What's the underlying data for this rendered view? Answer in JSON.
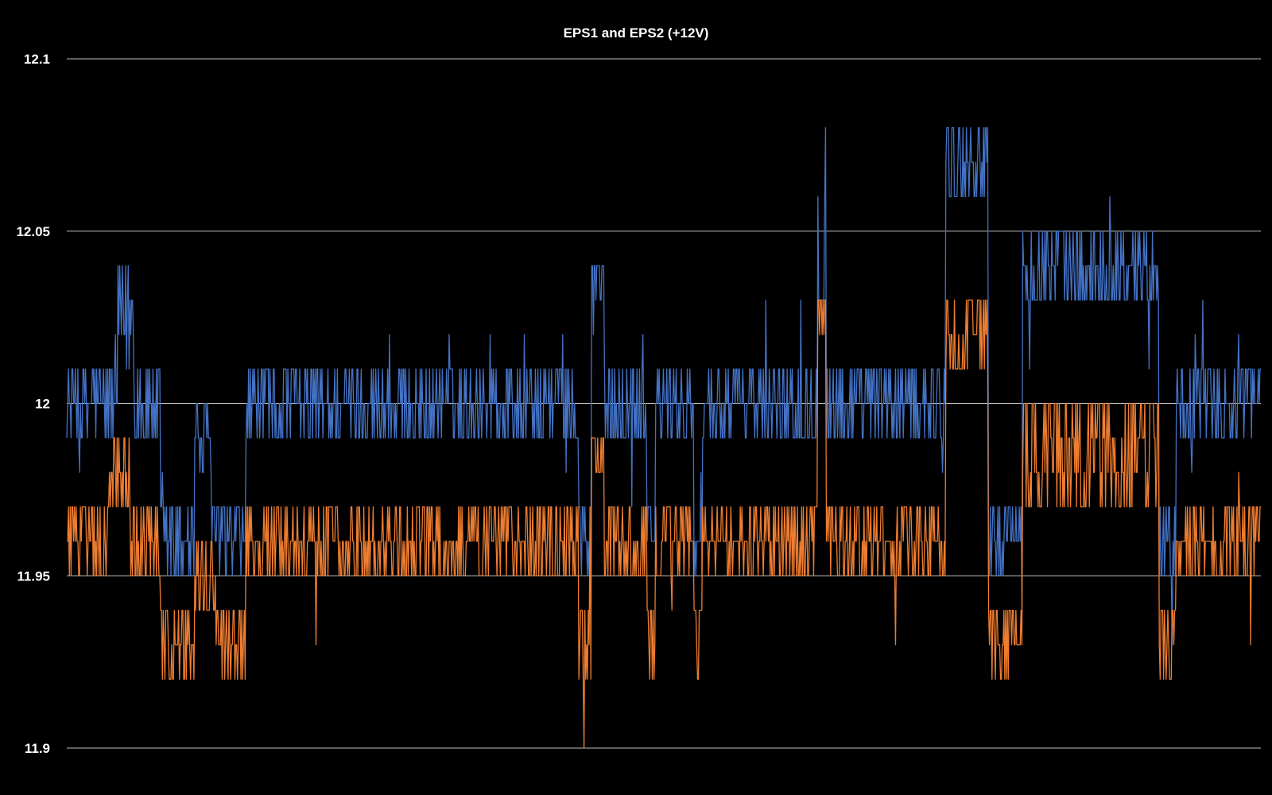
{
  "chart_data": {
    "type": "line",
    "title": "EPS1 and EPS2 (+12V)",
    "xlabel": "",
    "ylabel": "",
    "ylim": [
      11.9,
      12.1
    ],
    "yticks": [
      "12.1",
      "12.05",
      "12",
      "11.95",
      "11.9"
    ],
    "ytick_values": [
      12.1,
      12.05,
      12.0,
      11.95,
      11.9
    ],
    "grid": true,
    "legend": "none",
    "n_points": 1400,
    "series": [
      {
        "color": "#4472c4",
        "segments": [
          {
            "from": 0,
            "to": 60,
            "levels": [
              11.99,
              12.0,
              12.01
            ]
          },
          {
            "from": 60,
            "to": 80,
            "levels": [
              12.01,
              12.02,
              12.03,
              12.04
            ]
          },
          {
            "from": 80,
            "to": 110,
            "levels": [
              11.99,
              12.0,
              12.01
            ]
          },
          {
            "from": 110,
            "to": 150,
            "levels": [
              11.95,
              11.96,
              11.97
            ]
          },
          {
            "from": 150,
            "to": 170,
            "levels": [
              11.98,
              11.99,
              12.0
            ]
          },
          {
            "from": 170,
            "to": 210,
            "levels": [
              11.95,
              11.96,
              11.97
            ]
          },
          {
            "from": 210,
            "to": 410,
            "levels": [
              11.99,
              12.0,
              12.01
            ]
          },
          {
            "from": 410,
            "to": 600,
            "levels": [
              11.99,
              12.0,
              12.01
            ]
          },
          {
            "from": 600,
            "to": 615,
            "levels": [
              11.95,
              11.96,
              11.97
            ]
          },
          {
            "from": 615,
            "to": 630,
            "levels": [
              12.03,
              12.04
            ]
          },
          {
            "from": 630,
            "to": 680,
            "levels": [
              11.99,
              12.0,
              12.01
            ]
          },
          {
            "from": 680,
            "to": 690,
            "levels": [
              11.96,
              11.97
            ]
          },
          {
            "from": 690,
            "to": 735,
            "levels": [
              11.99,
              12.0,
              12.01
            ]
          },
          {
            "from": 735,
            "to": 745,
            "levels": [
              11.95,
              11.96
            ]
          },
          {
            "from": 745,
            "to": 880,
            "levels": [
              11.99,
              12.0,
              12.01
            ]
          },
          {
            "from": 880,
            "to": 890,
            "levels": [
              12.03,
              12.06,
              12.08
            ]
          },
          {
            "from": 890,
            "to": 1030,
            "levels": [
              11.99,
              12.0,
              12.01
            ]
          },
          {
            "from": 1030,
            "to": 1080,
            "levels": [
              12.06,
              12.07,
              12.08
            ]
          },
          {
            "from": 1080,
            "to": 1105,
            "levels": [
              11.95,
              11.96,
              11.97
            ]
          },
          {
            "from": 1105,
            "to": 1120,
            "levels": [
              11.96,
              11.97
            ]
          },
          {
            "from": 1120,
            "to": 1280,
            "levels": [
              12.03,
              12.04,
              12.05
            ]
          },
          {
            "from": 1280,
            "to": 1300,
            "levels": [
              11.95,
              11.96,
              11.97
            ]
          },
          {
            "from": 1300,
            "to": 1400,
            "levels": [
              11.99,
              12.0,
              12.01
            ]
          }
        ]
      },
      {
        "color": "#ed7d31",
        "segments": [
          {
            "from": 0,
            "to": 50,
            "levels": [
              11.95,
              11.96,
              11.97
            ]
          },
          {
            "from": 50,
            "to": 75,
            "levels": [
              11.97,
              11.98,
              11.99
            ]
          },
          {
            "from": 75,
            "to": 110,
            "levels": [
              11.95,
              11.96,
              11.97
            ]
          },
          {
            "from": 110,
            "to": 150,
            "levels": [
              11.92,
              11.93,
              11.94
            ]
          },
          {
            "from": 150,
            "to": 175,
            "levels": [
              11.94,
              11.95,
              11.96
            ]
          },
          {
            "from": 175,
            "to": 210,
            "levels": [
              11.92,
              11.93,
              11.94
            ]
          },
          {
            "from": 210,
            "to": 410,
            "levels": [
              11.95,
              11.96,
              11.97
            ]
          },
          {
            "from": 410,
            "to": 600,
            "levels": [
              11.95,
              11.96,
              11.97
            ]
          },
          {
            "from": 600,
            "to": 615,
            "levels": [
              11.92,
              11.93,
              11.94
            ]
          },
          {
            "from": 615,
            "to": 630,
            "levels": [
              11.98,
              11.99
            ]
          },
          {
            "from": 630,
            "to": 680,
            "levels": [
              11.95,
              11.96,
              11.97
            ]
          },
          {
            "from": 680,
            "to": 690,
            "levels": [
              11.92,
              11.93,
              11.94
            ]
          },
          {
            "from": 690,
            "to": 735,
            "levels": [
              11.95,
              11.96,
              11.97
            ]
          },
          {
            "from": 735,
            "to": 745,
            "levels": [
              11.92,
              11.93,
              11.94
            ]
          },
          {
            "from": 745,
            "to": 880,
            "levels": [
              11.95,
              11.96,
              11.97
            ]
          },
          {
            "from": 880,
            "to": 890,
            "levels": [
              12.02,
              12.03
            ]
          },
          {
            "from": 890,
            "to": 1030,
            "levels": [
              11.95,
              11.96,
              11.97
            ]
          },
          {
            "from": 1030,
            "to": 1080,
            "levels": [
              12.01,
              12.02,
              12.03
            ]
          },
          {
            "from": 1080,
            "to": 1105,
            "levels": [
              11.92,
              11.93,
              11.94
            ]
          },
          {
            "from": 1105,
            "to": 1120,
            "levels": [
              11.93,
              11.94
            ]
          },
          {
            "from": 1120,
            "to": 1280,
            "levels": [
              11.97,
              11.98,
              11.99,
              12.0
            ]
          },
          {
            "from": 1280,
            "to": 1300,
            "levels": [
              11.92,
              11.93,
              11.94
            ]
          },
          {
            "from": 1300,
            "to": 1400,
            "levels": [
              11.95,
              11.96,
              11.97
            ]
          }
        ]
      }
    ]
  }
}
